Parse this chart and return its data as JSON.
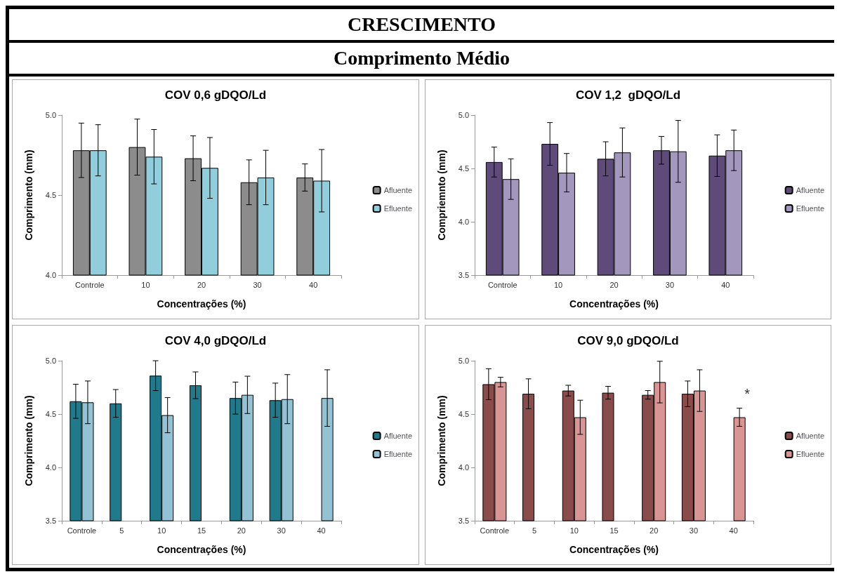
{
  "chart_data": [
    {
      "type": "other",
      "title": "CRESCIMENTO",
      "subtitle": "Comprimento Médio"
    },
    {
      "type": "bar",
      "title": "COV 0,6 gDQO/Ld",
      "xlabel": "Concentrações (%)",
      "ylabel": "Comprimento (mm)",
      "categories": [
        "Controle",
        "10",
        "20",
        "30",
        "40"
      ],
      "ylim": [
        4.0,
        5.0
      ],
      "yticks": [
        {
          "value": 4.0,
          "label": "4.0"
        },
        {
          "value": 4.5,
          "label": "4.5"
        },
        {
          "value": 5.0,
          "label": "5.0"
        }
      ],
      "legend": "right",
      "grid": false,
      "series": [
        {
          "name": "Afluente",
          "color": "#8c8c8c",
          "values": [
            4.78,
            4.8,
            4.73,
            4.58,
            4.61
          ],
          "errors": [
            0.17,
            0.175,
            0.14,
            0.14,
            0.085
          ]
        },
        {
          "name": "Efluente",
          "color": "#92cddc",
          "values": [
            4.78,
            4.74,
            4.67,
            4.61,
            4.59
          ],
          "errors": [
            0.16,
            0.17,
            0.19,
            0.17,
            0.195
          ]
        }
      ]
    },
    {
      "type": "bar",
      "title": "COV 1,2  gDQO/Ld",
      "xlabel": "Concentrações (%)",
      "ylabel": "Compriemnto (mm)",
      "categories": [
        "Controle",
        "10",
        "20",
        "30",
        "40"
      ],
      "ylim": [
        3.5,
        5.0
      ],
      "yticks": [
        {
          "value": 3.5,
          "label": "3.5"
        },
        {
          "value": 4.0,
          "label": "4.0"
        },
        {
          "value": 4.5,
          "label": "4.5"
        },
        {
          "value": 5.0,
          "label": "5.0"
        }
      ],
      "legend": "right",
      "grid": false,
      "series": [
        {
          "name": "Afluente",
          "color": "#5f4b7a",
          "values": [
            4.56,
            4.73,
            4.59,
            4.67,
            4.62
          ],
          "errors": [
            0.14,
            0.2,
            0.16,
            0.13,
            0.195
          ]
        },
        {
          "name": "Efluente",
          "color": "#a497bd",
          "values": [
            4.4,
            4.46,
            4.65,
            4.66,
            4.67
          ],
          "errors": [
            0.19,
            0.18,
            0.23,
            0.29,
            0.19
          ]
        }
      ]
    },
    {
      "type": "bar",
      "title": "COV 4,0 gDQO/Ld",
      "xlabel": "Concentrações (%)",
      "ylabel": "Comprimento (mm)",
      "categories": [
        "Controle",
        "5",
        "10",
        "15",
        "20",
        "30",
        "40"
      ],
      "ylim": [
        3.5,
        5.0
      ],
      "yticks": [
        {
          "value": 3.5,
          "label": "3.5"
        },
        {
          "value": 4.0,
          "label": "4.0"
        },
        {
          "value": 4.5,
          "label": "4.5"
        },
        {
          "value": 5.0,
          "label": "5.0"
        }
      ],
      "legend": "right",
      "grid": false,
      "series": [
        {
          "name": "Afluente",
          "color": "#1f7a8c",
          "values": [
            4.62,
            4.6,
            4.86,
            4.77,
            4.65,
            4.63,
            null
          ],
          "errors": [
            0.16,
            0.13,
            0.14,
            0.125,
            0.15,
            0.16,
            null
          ]
        },
        {
          "name": "Efluente",
          "color": "#93c2d4",
          "values": [
            4.61,
            null,
            4.49,
            null,
            4.68,
            4.64,
            4.65
          ],
          "errors": [
            0.2,
            null,
            0.165,
            null,
            0.175,
            0.23,
            0.265
          ]
        }
      ]
    },
    {
      "type": "bar",
      "title": "COV 9,0 gDQO/Ld",
      "xlabel": "Concentrações (%)",
      "ylabel": "Comprimento (mm)",
      "categories": [
        "Controle",
        "5",
        "10",
        "15",
        "20",
        "30",
        "40"
      ],
      "ylim": [
        3.5,
        5.0
      ],
      "yticks": [
        {
          "value": 3.5,
          "label": "3.5"
        },
        {
          "value": 4.0,
          "label": "4.0"
        },
        {
          "value": 4.5,
          "label": "4.5"
        },
        {
          "value": 5.0,
          "label": "5.0"
        }
      ],
      "legend": "right",
      "grid": false,
      "annotations": [
        {
          "text": "*",
          "x": "40",
          "y": 4.47
        }
      ],
      "series": [
        {
          "name": "Afluente",
          "color": "#8a4b4b",
          "values": [
            4.78,
            4.69,
            4.72,
            4.7,
            4.68,
            4.69,
            null
          ],
          "errors": [
            0.145,
            0.14,
            0.05,
            0.06,
            0.04,
            0.12,
            null
          ]
        },
        {
          "name": "Efluente",
          "color": "#d99594",
          "values": [
            4.8,
            null,
            4.47,
            null,
            4.8,
            4.72,
            4.47
          ],
          "errors": [
            0.045,
            null,
            0.16,
            null,
            0.195,
            0.195,
            0.085
          ]
        }
      ]
    }
  ]
}
